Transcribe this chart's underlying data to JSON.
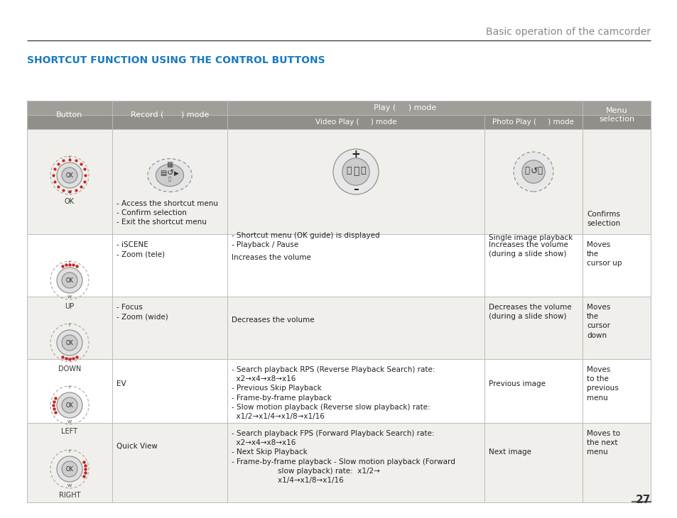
{
  "page_bg": "#ffffff",
  "header_text": "Basic operation of the camcorder",
  "header_color": "#888888",
  "section_title": "SHORTCUT FUNCTION USING THE CONTROL BUTTONS",
  "section_title_color": "#1a7abf",
  "table_header_bg": "#a09e98",
  "table_subheader_bg": "#918f89",
  "table_border_color": "#bbbbbb",
  "rows": [
    {
      "button_label": "OK",
      "record_text": "- Access the shortcut menu\n- Confirm selection\n- Exit the shortcut menu",
      "video_text": "- Shortcut menu (OK guide) is displayed\n- Playback / Pause",
      "photo_text": "Single image playback",
      "menu_text": "Confirms\nselection",
      "row_bg": "#f0efeb",
      "has_top": false,
      "has_bottom": false,
      "has_left": false,
      "has_right": false,
      "has_icons": true
    },
    {
      "button_label": "UP",
      "record_text": "- iSCENE\n- Zoom (tele)",
      "video_text": "Increases the volume",
      "photo_text": "Increases the volume\n(during a slide show)",
      "menu_text": "Moves\nthe\ncursor up",
      "row_bg": "#ffffff",
      "has_top": true,
      "has_bottom": false,
      "has_left": false,
      "has_right": false,
      "has_icons": false
    },
    {
      "button_label": "DOWN",
      "record_text": "- Focus\n- Zoom (wide)",
      "video_text": "Decreases the volume",
      "photo_text": "Decreases the volume\n(during a slide show)",
      "menu_text": "Moves\nthe\ncursor\ndown",
      "row_bg": "#f0efeb",
      "has_top": false,
      "has_bottom": true,
      "has_left": false,
      "has_right": false,
      "has_icons": false
    },
    {
      "button_label": "LEFT",
      "record_text": "EV",
      "video_text": "- Search playback RPS (Reverse Playback Search) rate:\n  x2→x4→x8→x16\n- Previous Skip Playback\n- Frame-by-frame playback\n- Slow motion playback (Reverse slow playback) rate:\n  x1/2→x1/4→x1/8→x1/16",
      "photo_text": "Previous image",
      "menu_text": "Moves\nto the\nprevious\nmenu",
      "row_bg": "#ffffff",
      "has_top": false,
      "has_bottom": false,
      "has_left": true,
      "has_right": false,
      "has_icons": false
    },
    {
      "button_label": "RIGHT",
      "record_text": "Quick View",
      "video_text": "- Search playback FPS (Forward Playback Search) rate:\n  x2→x4→x8→x16\n- Next Skip Playback\n- Frame-by-frame playback - Slow motion playback (Forward\n                    slow playback) rate:  x1/2→\n                    x1/4→x1/8→x1/16",
      "photo_text": "Next image",
      "menu_text": "Moves to\nthe next\nmenu",
      "row_bg": "#f0efeb",
      "has_top": false,
      "has_bottom": false,
      "has_left": false,
      "has_right": true,
      "has_icons": false
    }
  ],
  "page_number": "27",
  "figsize": [
    9.54,
    7.3
  ],
  "dpi": 100
}
